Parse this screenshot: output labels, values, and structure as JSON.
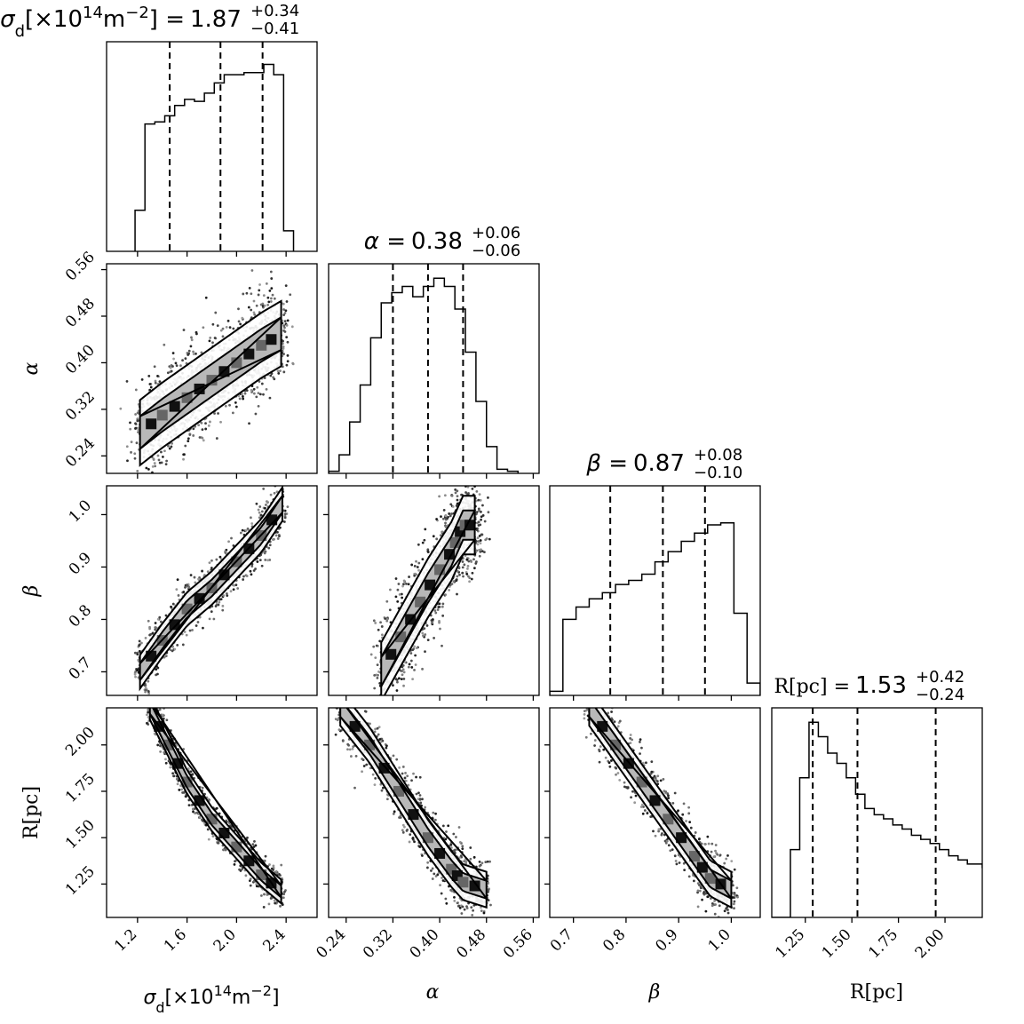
{
  "chart_data": {
    "type": "corner",
    "parameters": [
      {
        "key": "sigma_d",
        "label": "σ_d[×10^14m^−2]",
        "range": [
          0.95,
          2.65
        ],
        "ticks": [
          1.2,
          1.6,
          2.0,
          2.4
        ],
        "tick_labels": [
          "1.2",
          "1.6",
          "2.0",
          "2.4"
        ]
      },
      {
        "key": "alpha",
        "label": "α",
        "range": [
          0.21,
          0.57
        ],
        "ticks": [
          0.24,
          0.32,
          0.4,
          0.48,
          0.56
        ],
        "tick_labels": [
          "0.24",
          "0.32",
          "0.40",
          "0.48",
          "0.56"
        ]
      },
      {
        "key": "beta",
        "label": "β",
        "range": [
          0.655,
          1.055
        ],
        "ticks": [
          0.7,
          0.8,
          0.9,
          1.0
        ],
        "tick_labels": [
          "0.7",
          "0.8",
          "0.9",
          "1.0"
        ]
      },
      {
        "key": "R",
        "label": "R[pc]",
        "range": [
          1.07,
          2.2
        ],
        "ticks": [
          1.25,
          1.5,
          1.75,
          2.0
        ],
        "tick_labels": [
          "1.25",
          "1.50",
          "1.75",
          "2.00"
        ]
      }
    ],
    "titles": [
      {
        "param": "σ_d[×10^14m^−2]",
        "value": "1.87",
        "plus": "+0.34",
        "minus": "−0.41"
      },
      {
        "param": "α",
        "value": "0.38",
        "plus": "+0.06",
        "minus": "−0.06"
      },
      {
        "param": "β",
        "value": "0.87",
        "plus": "+0.08",
        "minus": "−0.10"
      },
      {
        "param": "R[pc]",
        "value": "1.53",
        "plus": "+0.42",
        "minus": "−0.24"
      }
    ],
    "quantiles": [
      [
        1.46,
        1.87,
        2.21
      ],
      [
        0.32,
        0.38,
        0.44
      ],
      [
        0.77,
        0.87,
        0.95
      ],
      [
        1.29,
        1.53,
        1.95
      ]
    ],
    "histograms": [
      {
        "edges": [
          1.18,
          1.26,
          1.34,
          1.42,
          1.5,
          1.58,
          1.66,
          1.74,
          1.82,
          1.9,
          1.98,
          2.06,
          2.14,
          2.22,
          2.3,
          2.38,
          2.46
        ],
        "counts": [
          0.2,
          0.62,
          0.63,
          0.66,
          0.71,
          0.74,
          0.73,
          0.77,
          0.82,
          0.86,
          0.86,
          0.87,
          0.87,
          0.91,
          0.86,
          0.1
        ]
      },
      {
        "edges": [
          0.21,
          0.228,
          0.246,
          0.264,
          0.282,
          0.3,
          0.318,
          0.336,
          0.354,
          0.372,
          0.39,
          0.408,
          0.426,
          0.444,
          0.462,
          0.48,
          0.498,
          0.516,
          0.534
        ],
        "counts": [
          0.01,
          0.09,
          0.25,
          0.43,
          0.66,
          0.83,
          0.88,
          0.91,
          0.86,
          0.91,
          0.95,
          0.91,
          0.8,
          0.59,
          0.35,
          0.13,
          0.02,
          0.01
        ]
      },
      {
        "edges": [
          0.655,
          0.68,
          0.705,
          0.73,
          0.755,
          0.78,
          0.805,
          0.83,
          0.855,
          0.88,
          0.905,
          0.93,
          0.955,
          0.98,
          1.005,
          1.03,
          1.055
        ],
        "counts": [
          0.02,
          0.37,
          0.43,
          0.47,
          0.5,
          0.54,
          0.56,
          0.59,
          0.65,
          0.7,
          0.75,
          0.79,
          0.83,
          0.84,
          0.4,
          0.06
        ]
      },
      {
        "edges": [
          1.07,
          1.12,
          1.17,
          1.22,
          1.27,
          1.32,
          1.37,
          1.42,
          1.47,
          1.52,
          1.57,
          1.62,
          1.67,
          1.72,
          1.77,
          1.82,
          1.87,
          1.92,
          1.97,
          2.02,
          2.07,
          2.12,
          2.2
        ],
        "counts": [
          0.0,
          0.0,
          0.33,
          0.68,
          0.95,
          0.88,
          0.8,
          0.75,
          0.68,
          0.6,
          0.53,
          0.5,
          0.48,
          0.45,
          0.43,
          0.4,
          0.38,
          0.36,
          0.33,
          0.3,
          0.28,
          0.26,
          0.24
        ]
      }
    ],
    "pairs": [
      {
        "x": 0,
        "y": 1,
        "ridge": [
          [
            1.22,
            0.28
          ],
          [
            1.4,
            0.31
          ],
          [
            1.6,
            0.34
          ],
          [
            1.8,
            0.37
          ],
          [
            2.0,
            0.4
          ],
          [
            2.2,
            0.43
          ],
          [
            2.36,
            0.45
          ]
        ],
        "half_width": 0.035
      },
      {
        "x": 0,
        "y": 2,
        "ridge": [
          [
            1.22,
            0.7
          ],
          [
            1.4,
            0.76
          ],
          [
            1.6,
            0.82
          ],
          [
            1.8,
            0.86
          ],
          [
            2.0,
            0.91
          ],
          [
            2.2,
            0.96
          ],
          [
            2.37,
            1.02
          ]
        ],
        "half_width": 0.02
      },
      {
        "x": 1,
        "y": 2,
        "ridge": [
          [
            0.3,
            0.7
          ],
          [
            0.34,
            0.78
          ],
          [
            0.38,
            0.86
          ],
          [
            0.42,
            0.93
          ],
          [
            0.44,
            0.98
          ],
          [
            0.46,
            0.98
          ]
        ],
        "half_width": 0.035
      },
      {
        "x": 0,
        "y": 3,
        "ridge": [
          [
            1.3,
            2.2
          ],
          [
            1.45,
            2.0
          ],
          [
            1.6,
            1.8
          ],
          [
            1.8,
            1.6
          ],
          [
            2.0,
            1.45
          ],
          [
            2.2,
            1.3
          ],
          [
            2.36,
            1.21
          ]
        ],
        "half_width": 0.04
      },
      {
        "x": 1,
        "y": 3,
        "ridge": [
          [
            0.23,
            2.2
          ],
          [
            0.28,
            2.0
          ],
          [
            0.33,
            1.75
          ],
          [
            0.38,
            1.5
          ],
          [
            0.42,
            1.33
          ],
          [
            0.44,
            1.26
          ],
          [
            0.48,
            1.22
          ]
        ],
        "half_width": 0.06
      },
      {
        "x": 2,
        "y": 3,
        "ridge": [
          [
            0.73,
            2.2
          ],
          [
            0.78,
            2.0
          ],
          [
            0.83,
            1.8
          ],
          [
            0.88,
            1.6
          ],
          [
            0.93,
            1.4
          ],
          [
            0.96,
            1.28
          ],
          [
            1.0,
            1.22
          ]
        ],
        "half_width": 0.06
      }
    ]
  }
}
